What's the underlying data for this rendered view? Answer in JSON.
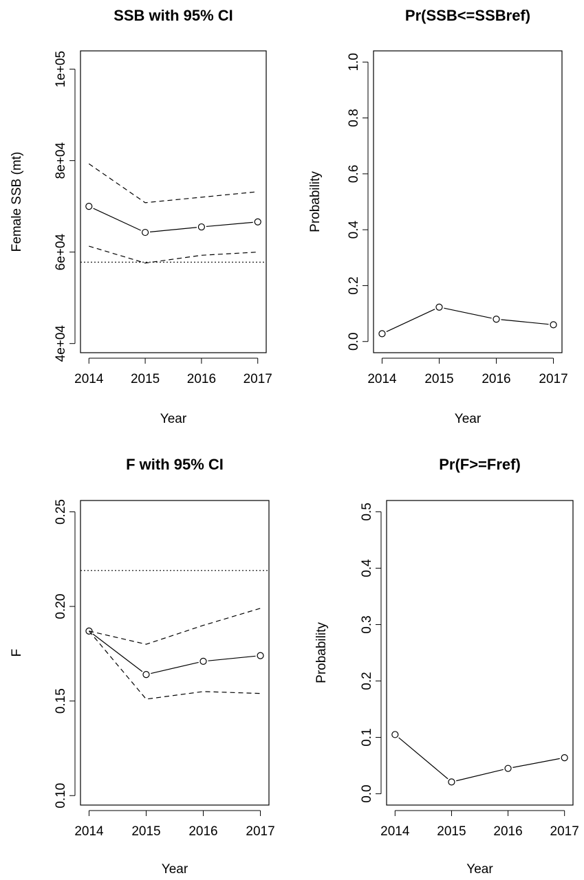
{
  "chart_data": [
    {
      "type": "line",
      "title": "SSB with 95% CI",
      "xlabel": "Year",
      "ylabel": "Female SSB (mt)",
      "x": [
        2014,
        2015,
        2016,
        2017
      ],
      "xticks": [
        "2014",
        "2015",
        "2016",
        "2017"
      ],
      "ylim": [
        38000,
        104000
      ],
      "yticks": [
        40000,
        60000,
        80000,
        100000
      ],
      "ytick_labels": [
        "4e+04",
        "6e+04",
        "8e+04",
        "1e+05"
      ],
      "series": [
        {
          "values": [
            70000,
            64300,
            65500,
            66600
          ],
          "style": "solid",
          "markers": true
        },
        {
          "values": [
            79300,
            70800,
            72000,
            73200
          ],
          "style": "dashed",
          "markers": false
        },
        {
          "values": [
            61300,
            57600,
            59300,
            60000
          ],
          "style": "dashed",
          "markers": false
        }
      ],
      "reference_line": {
        "y": 57800,
        "style": "dotted"
      }
    },
    {
      "type": "line",
      "title": "Pr(SSB<=SSBref)",
      "xlabel": "Year",
      "ylabel": "Probability",
      "x": [
        2014,
        2015,
        2016,
        2017
      ],
      "xticks": [
        "2014",
        "2015",
        "2016",
        "2017"
      ],
      "ylim": [
        -0.04,
        1.04
      ],
      "yticks": [
        0.0,
        0.2,
        0.4,
        0.6,
        0.8,
        1.0
      ],
      "ytick_labels": [
        "0.0",
        "0.2",
        "0.4",
        "0.6",
        "0.8",
        "1.0"
      ],
      "series": [
        {
          "values": [
            0.028,
            0.123,
            0.08,
            0.06
          ],
          "style": "solid",
          "markers": true
        }
      ]
    },
    {
      "type": "line",
      "title": "F with 95% CI",
      "xlabel": "Year",
      "ylabel": "F",
      "x": [
        2014,
        2015,
        2016,
        2017
      ],
      "xticks": [
        "2014",
        "2015",
        "2016",
        "2017"
      ],
      "ylim": [
        0.095,
        0.256
      ],
      "yticks": [
        0.1,
        0.15,
        0.2,
        0.25
      ],
      "ytick_labels": [
        "0.10",
        "0.15",
        "0.20",
        "0.25"
      ],
      "series": [
        {
          "values": [
            0.187,
            0.164,
            0.171,
            0.174
          ],
          "style": "solid",
          "markers": true
        },
        {
          "values": [
            0.187,
            0.18,
            0.19,
            0.199
          ],
          "style": "dashed",
          "markers": false
        },
        {
          "values": [
            0.187,
            0.151,
            0.155,
            0.154
          ],
          "style": "dashed",
          "markers": false
        }
      ],
      "reference_line": {
        "y": 0.219,
        "style": "dotted"
      }
    },
    {
      "type": "line",
      "title": "Pr(F>=Fref)",
      "xlabel": "Year",
      "ylabel": "Probability",
      "x": [
        2014,
        2015,
        2016,
        2017
      ],
      "xticks": [
        "2014",
        "2015",
        "2016",
        "2017"
      ],
      "ylim": [
        -0.02,
        0.52
      ],
      "yticks": [
        0.0,
        0.1,
        0.2,
        0.3,
        0.4,
        0.5
      ],
      "ytick_labels": [
        "0.0",
        "0.1",
        "0.2",
        "0.3",
        "0.4",
        "0.5"
      ],
      "series": [
        {
          "values": [
            0.105,
            0.021,
            0.045,
            0.064
          ],
          "style": "solid",
          "markers": true
        }
      ]
    }
  ]
}
